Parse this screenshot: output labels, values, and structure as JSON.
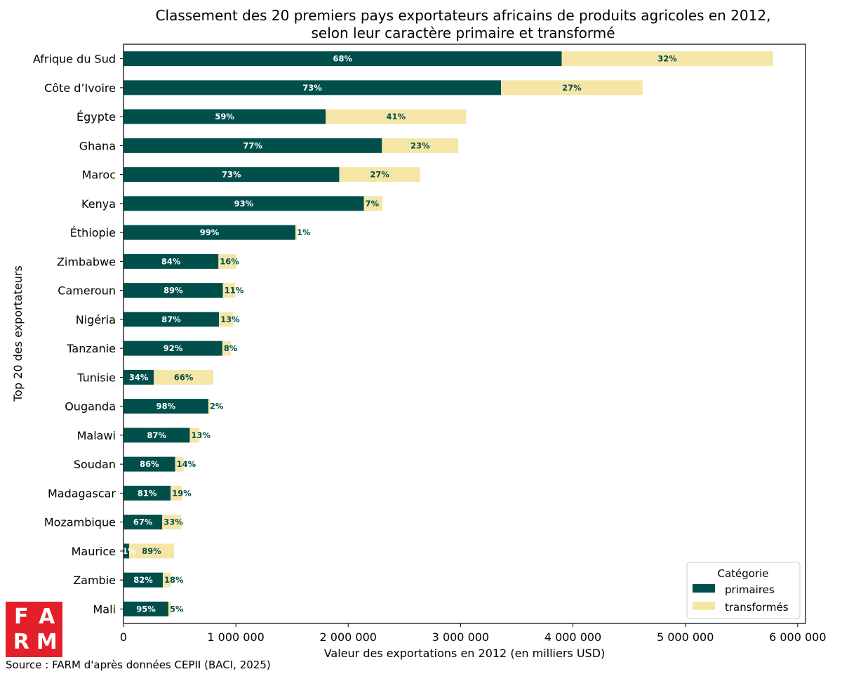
{
  "chart_data": {
    "type": "bar",
    "orientation": "horizontal",
    "stacked": true,
    "title_line1": "Classement des 20 premiers pays exportateurs africains de produits agricoles en 2012,",
    "title_line2": "selon leur caractère primaire et transformé",
    "xlabel": "Valeur des exportations en 2012 (en milliers USD)",
    "ylabel": "Top 20 des exportateurs",
    "xlim": [
      0,
      6070000
    ],
    "xticks": [
      0,
      1000000,
      2000000,
      3000000,
      4000000,
      5000000,
      6000000
    ],
    "xtick_labels": [
      "0",
      "1 000 000",
      "2 000 000",
      "3 000 000",
      "4 000 000",
      "5 000 000",
      "6 000 000"
    ],
    "grid": false,
    "legend_title": "Catégorie",
    "legend_position": "bottom-right",
    "categories": [
      "Afrique du Sud",
      "Côte d’Ivoire",
      "Égypte",
      "Ghana",
      "Maroc",
      "Kenya",
      "Éthiopie",
      "Zimbabwe",
      "Cameroun",
      "Nigéria",
      "Tanzanie",
      "Tunisie",
      "Ouganda",
      "Malawi",
      "Soudan",
      "Madagascar",
      "Mozambique",
      "Maurice",
      "Zambie",
      "Mali"
    ],
    "series": [
      {
        "name": "primaires",
        "color": "#014f4b",
        "values": [
          3900000,
          3360000,
          1800000,
          2300000,
          1920000,
          2140000,
          1530000,
          845000,
          885000,
          850000,
          880000,
          270000,
          755000,
          590000,
          460000,
          420000,
          345000,
          50000,
          350000,
          400000
        ],
        "labels": [
          "68%",
          "73%",
          "59%",
          "77%",
          "73%",
          "93%",
          "99%",
          "84%",
          "89%",
          "87%",
          "92%",
          "34%",
          "98%",
          "87%",
          "86%",
          "81%",
          "67%",
          "11%",
          "82%",
          "95%"
        ]
      },
      {
        "name": "transformés",
        "color": "#f5e6a8",
        "values": [
          1880000,
          1260000,
          1250000,
          680000,
          720000,
          165000,
          15000,
          160000,
          110000,
          125000,
          75000,
          530000,
          15000,
          85000,
          75000,
          100000,
          170000,
          400000,
          75000,
          20000
        ],
        "labels": [
          "32%",
          "27%",
          "41%",
          "23%",
          "27%",
          "7%",
          "1%",
          "16%",
          "11%",
          "13%",
          "8%",
          "66%",
          "2%",
          "13%",
          "14%",
          "19%",
          "33%",
          "89%",
          "18%",
          "5%"
        ]
      }
    ]
  },
  "logo": {
    "letters": [
      "F",
      "A",
      "R",
      "M"
    ]
  },
  "source": "Source : FARM d'après données CEPII (BACI, 2025)"
}
